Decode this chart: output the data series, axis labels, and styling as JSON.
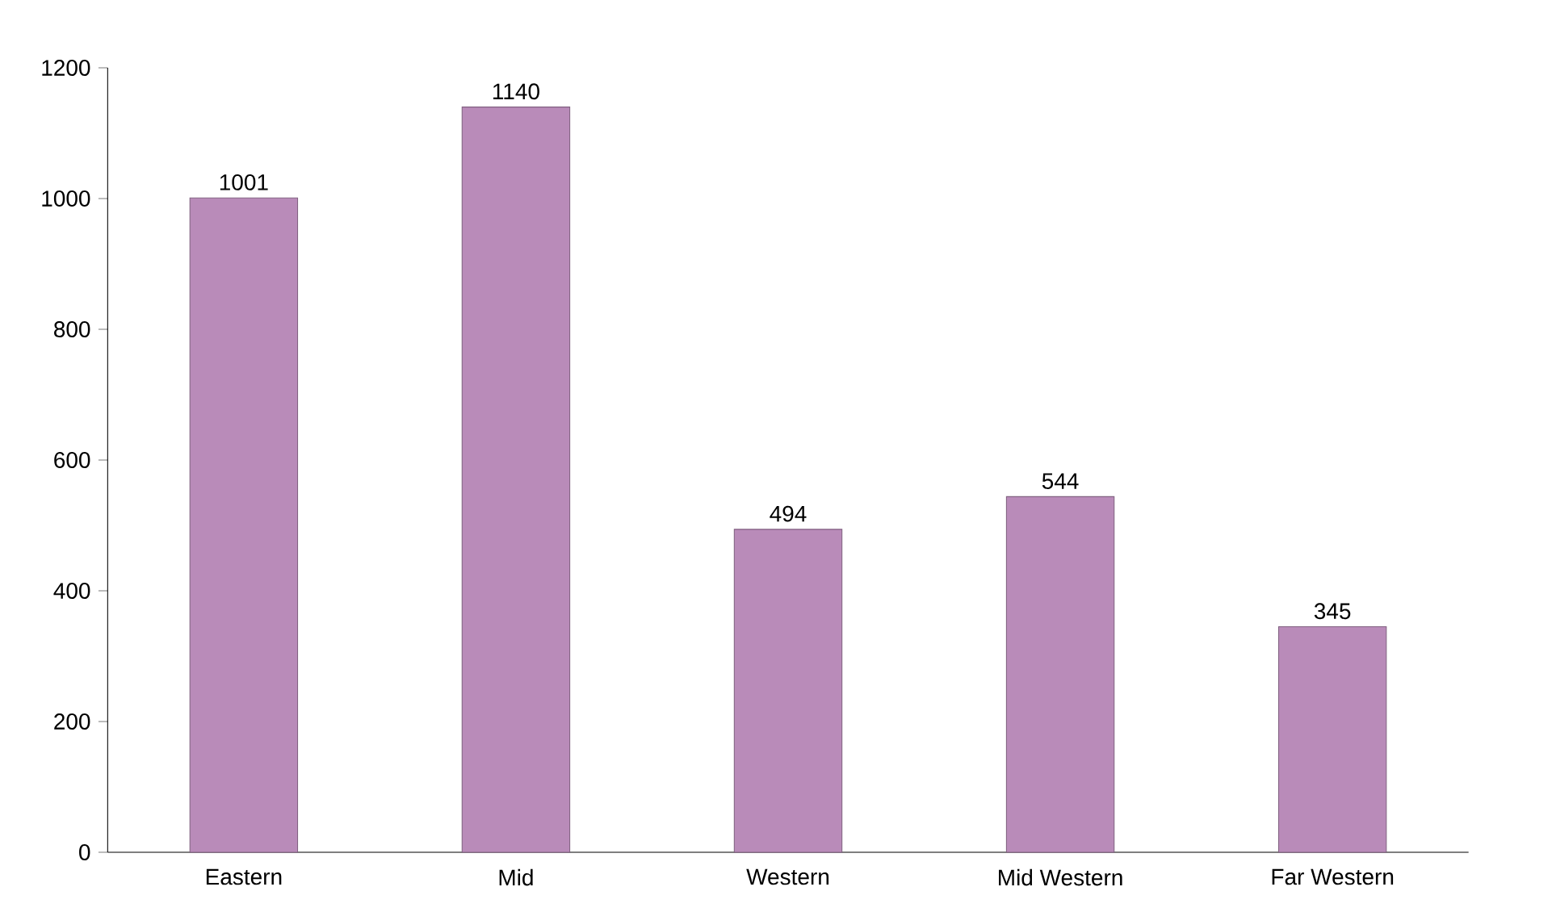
{
  "chart_data": {
    "type": "bar",
    "categories": [
      "Eastern",
      "Mid",
      "Western",
      "Mid Western",
      "Far Western"
    ],
    "values": [
      1001,
      1140,
      494,
      544,
      345
    ],
    "color": "#b98bb9",
    "ylim": [
      0,
      1200
    ],
    "yticks": [
      0,
      200,
      400,
      600,
      800,
      1000,
      1200
    ],
    "data_labels": true,
    "grid": false
  }
}
